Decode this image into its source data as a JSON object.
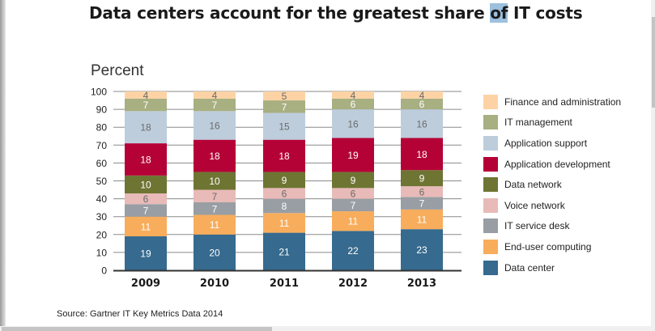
{
  "title": {
    "before": "Data centers account for the greatest share ",
    "highlighted": "of",
    "after": " IT costs"
  },
  "source": "Source: Gartner IT Key Metrics Data 2014",
  "chart_data": {
    "type": "bar",
    "stacked": true,
    "title": "Data centers account for the greatest share of IT costs",
    "ylabel": "Percent",
    "xlabel": "",
    "ylim": [
      0,
      100
    ],
    "yticks": [
      0,
      10,
      20,
      30,
      40,
      50,
      60,
      70,
      80,
      90,
      100
    ],
    "grid": true,
    "legend_position": "right",
    "categories": [
      "2009",
      "2010",
      "2011",
      "2012",
      "2013"
    ],
    "series": [
      {
        "name": "Data center",
        "color": "#366a8e",
        "label_color": "#ffffff",
        "values": [
          19,
          20,
          21,
          22,
          23
        ]
      },
      {
        "name": "End-user computing",
        "color": "#f8ad5c",
        "label_color": "#ffffff",
        "values": [
          11,
          11,
          11,
          11,
          11
        ]
      },
      {
        "name": "IT service desk",
        "color": "#989ea4",
        "label_color": "#ffffff",
        "values": [
          7,
          7,
          8,
          7,
          7
        ]
      },
      {
        "name": "Voice network",
        "color": "#e8bab8",
        "label_color": "#6b6b6b",
        "values": [
          6,
          7,
          6,
          6,
          6
        ]
      },
      {
        "name": "Data network",
        "color": "#6e7533",
        "label_color": "#ffffff",
        "values": [
          10,
          10,
          9,
          9,
          9
        ]
      },
      {
        "name": "Application development",
        "color": "#b50236",
        "label_color": "#ffffff",
        "values": [
          18,
          18,
          18,
          19,
          18
        ]
      },
      {
        "name": "Application support",
        "color": "#bdcddc",
        "label_color": "#6b6b6b",
        "values": [
          18,
          16,
          15,
          16,
          16
        ]
      },
      {
        "name": "IT management",
        "color": "#a8af81",
        "label_color": "#ffffff",
        "values": [
          7,
          7,
          7,
          6,
          6
        ]
      },
      {
        "name": "Finance and administration",
        "color": "#fdd3a5",
        "label_color": "#6b6b6b",
        "values": [
          4,
          4,
          5,
          4,
          4
        ]
      }
    ]
  }
}
